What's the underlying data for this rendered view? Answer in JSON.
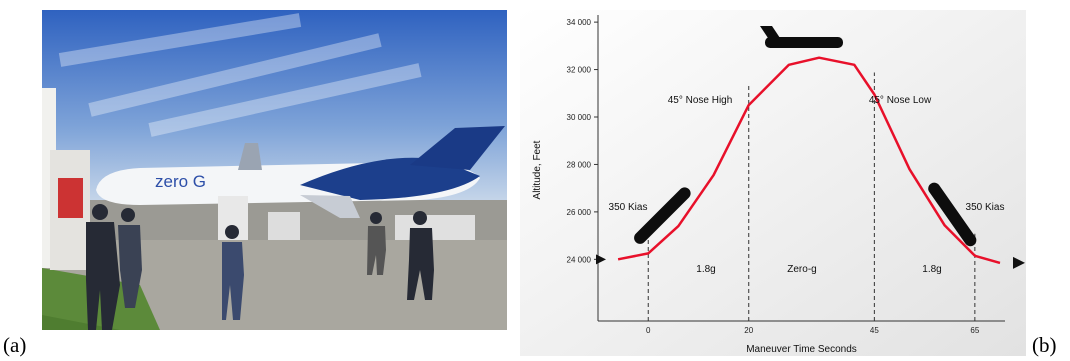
{
  "labels": {
    "a": "(a)",
    "b": "(b)"
  },
  "photo": {
    "aircraft_text": "zero G"
  },
  "chart_data": {
    "type": "line",
    "x_label": "Maneuver Time Seconds",
    "y_label": "Altitude, Feet",
    "annotations": [
      "45° Nose High",
      "45° Nose Low",
      "350 Kias",
      "350 Kias",
      "1.8g",
      "Zero-g",
      "1.8g"
    ],
    "x": [
      -6,
      0,
      6,
      13,
      20,
      28,
      34,
      41,
      45,
      52,
      59,
      65,
      70
    ],
    "values": [
      24000,
      24250,
      25400,
      27550,
      30500,
      32200,
      32500,
      32200,
      30950,
      27800,
      25430,
      24150,
      23850
    ],
    "color": "#e8102a",
    "xlim": [
      -10,
      71
    ],
    "xticks": [
      0,
      20,
      45,
      65
    ],
    "ylim": [
      21400,
      34300
    ],
    "yticks": [
      {
        "value": 24000,
        "label": "24 000"
      },
      {
        "value": 26000,
        "label": "26 000"
      },
      {
        "value": 28000,
        "label": "28 000"
      },
      {
        "value": 30000,
        "label": "30 000"
      },
      {
        "value": 32000,
        "label": "32 000"
      },
      {
        "value": 34000,
        "label": "34 000"
      }
    ]
  }
}
